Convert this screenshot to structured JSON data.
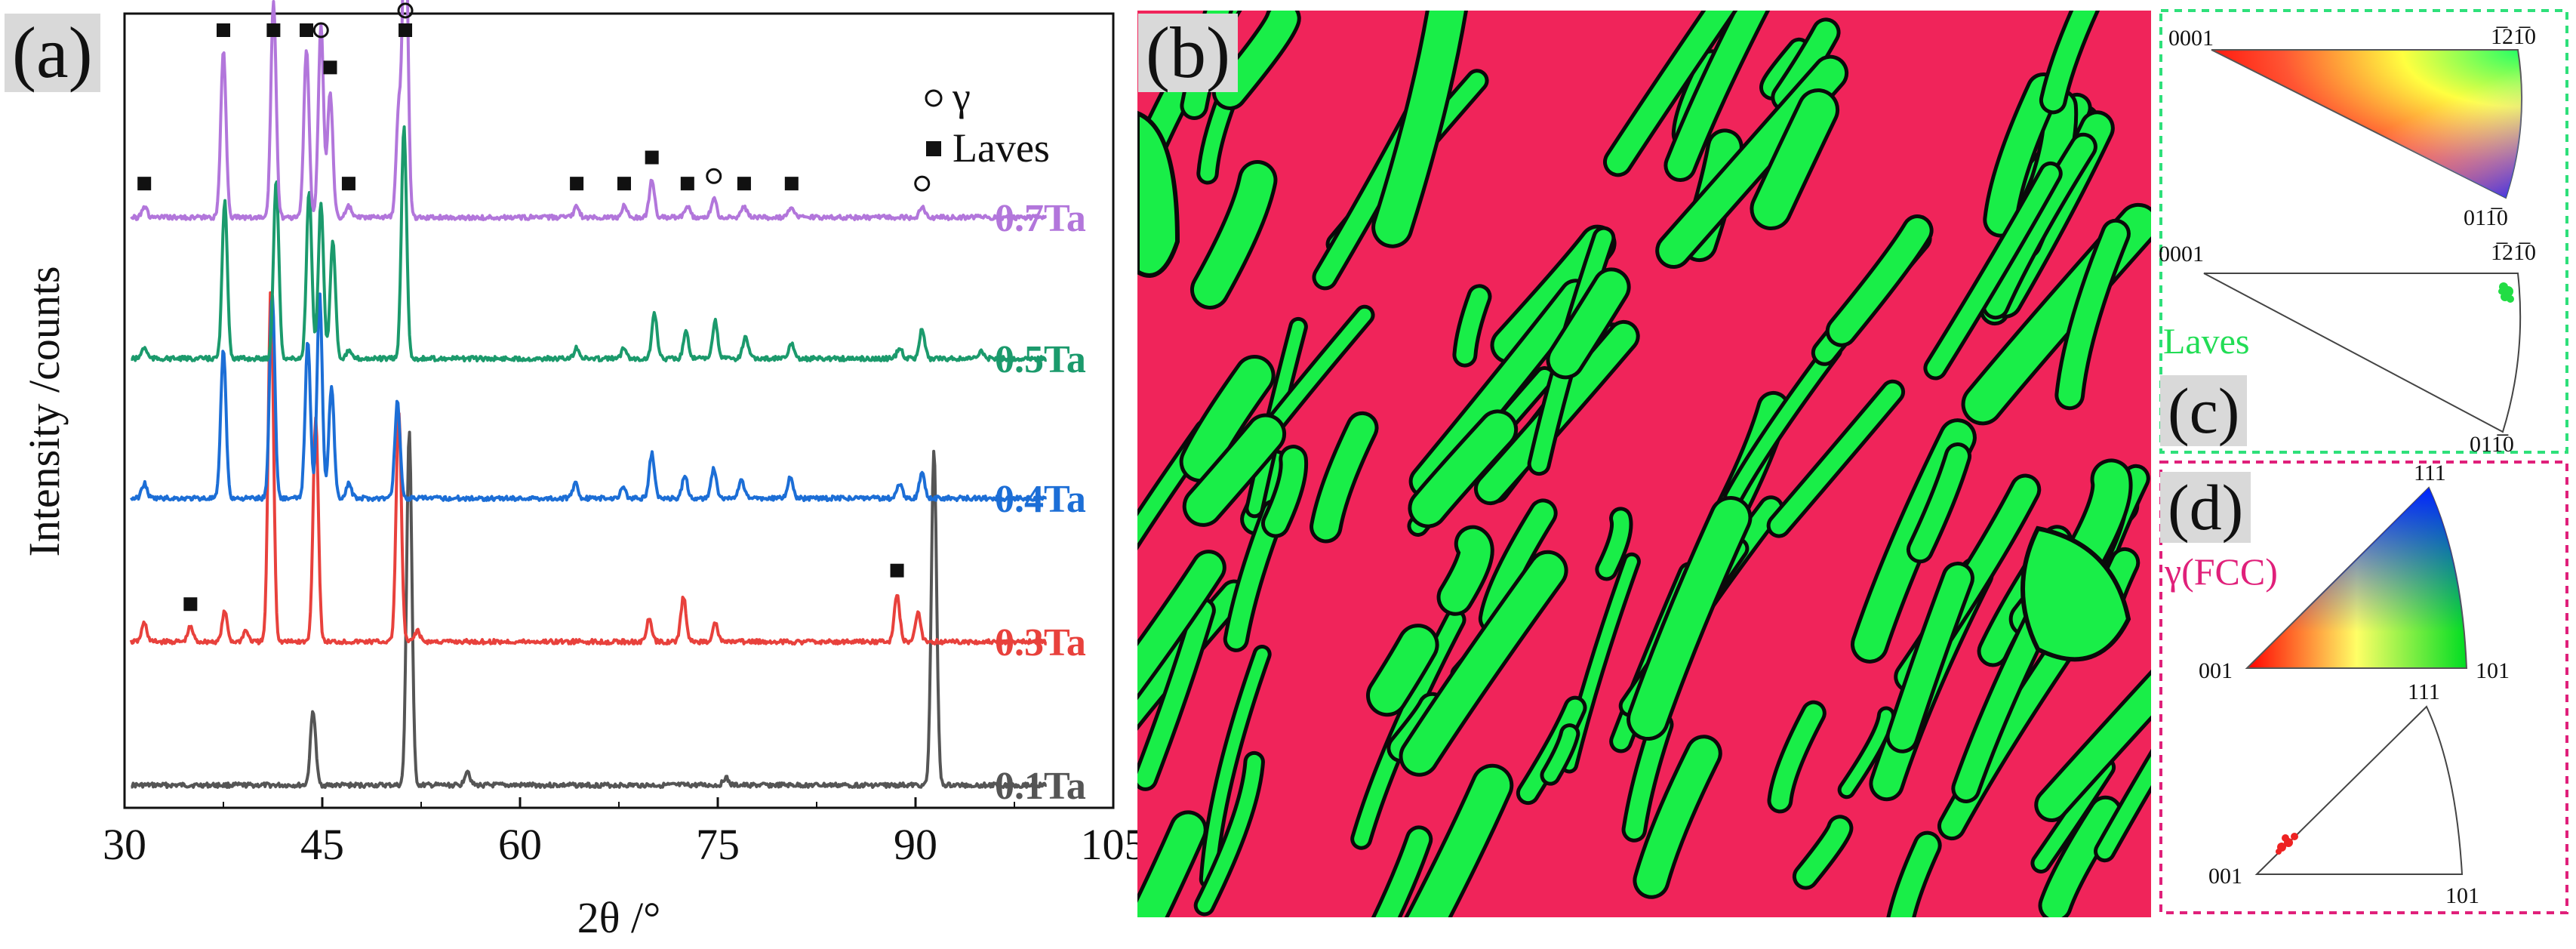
{
  "panels": {
    "a": "(a)",
    "b": "(b)",
    "c": "(c)",
    "d": "(d)"
  },
  "chart_data": {
    "type": "line",
    "title": "",
    "xlabel": "2θ /°",
    "ylabel": "Intensity /counts",
    "xlim": [
      30,
      105
    ],
    "xticks": [
      "30",
      "45",
      "60",
      "75",
      "90",
      "105"
    ],
    "legend": {
      "placement": "top-right",
      "entries": [
        {
          "symbol": "○",
          "label": "γ"
        },
        {
          "symbol": "■",
          "label": "Laves"
        }
      ]
    },
    "series": [
      {
        "name": "0.1Ta",
        "color": "#555555",
        "offset": 0,
        "peaks": [
          [
            44.3,
            0.2
          ],
          [
            51.6,
            0.95
          ],
          [
            56,
            0.04
          ],
          [
            75.6,
            0.02
          ],
          [
            91.4,
            0.9
          ]
        ]
      },
      {
        "name": "0.3Ta",
        "color": "#e8413c",
        "offset": 1,
        "peaks": [
          [
            31.5,
            0.05
          ],
          [
            35.0,
            0.04
          ],
          [
            37.6,
            0.08
          ],
          [
            39.2,
            0.03
          ],
          [
            41.1,
            0.95
          ],
          [
            44.5,
            0.6
          ],
          [
            50.8,
            0.62
          ],
          [
            52.2,
            0.03
          ],
          [
            69.8,
            0.06
          ],
          [
            72.4,
            0.12
          ],
          [
            74.8,
            0.05
          ],
          [
            88.6,
            0.13
          ],
          [
            90.2,
            0.08
          ]
        ]
      },
      {
        "name": "0.4Ta",
        "color": "#1c6ed6",
        "offset": 2,
        "peaks": [
          [
            31.5,
            0.04
          ],
          [
            37.5,
            0.4
          ],
          [
            41.2,
            0.55
          ],
          [
            43.9,
            0.42
          ],
          [
            44.8,
            0.55
          ],
          [
            45.7,
            0.3
          ],
          [
            47.0,
            0.04
          ],
          [
            50.7,
            0.26
          ],
          [
            64.2,
            0.04
          ],
          [
            67.8,
            0.03
          ],
          [
            70.0,
            0.12
          ],
          [
            72.5,
            0.06
          ],
          [
            74.7,
            0.08
          ],
          [
            76.8,
            0.05
          ],
          [
            80.5,
            0.06
          ],
          [
            88.8,
            0.04
          ],
          [
            90.5,
            0.07
          ]
        ]
      },
      {
        "name": "0.5Ta",
        "color": "#1b9a6c",
        "offset": 3,
        "peaks": [
          [
            31.5,
            0.03
          ],
          [
            37.6,
            0.42
          ],
          [
            41.5,
            0.48
          ],
          [
            44.0,
            0.45
          ],
          [
            44.9,
            0.42
          ],
          [
            45.8,
            0.32
          ],
          [
            47.0,
            0.02
          ],
          [
            51.2,
            0.62
          ],
          [
            64.3,
            0.03
          ],
          [
            67.9,
            0.03
          ],
          [
            70.2,
            0.12
          ],
          [
            72.6,
            0.07
          ],
          [
            74.8,
            0.1
          ],
          [
            77.1,
            0.06
          ],
          [
            80.6,
            0.04
          ],
          [
            88.8,
            0.03
          ],
          [
            90.5,
            0.08
          ],
          [
            95.0,
            0.02
          ]
        ]
      },
      {
        "name": "0.7Ta",
        "color": "#b276db",
        "offset": 4,
        "peaks": [
          [
            31.5,
            0.03
          ],
          [
            37.5,
            0.45
          ],
          [
            41.3,
            0.58
          ],
          [
            43.8,
            0.45
          ],
          [
            44.9,
            0.52
          ],
          [
            45.6,
            0.34
          ],
          [
            47.0,
            0.03
          ],
          [
            50.8,
            0.28
          ],
          [
            51.3,
            0.85
          ],
          [
            64.3,
            0.03
          ],
          [
            67.9,
            0.03
          ],
          [
            70.0,
            0.1
          ],
          [
            72.7,
            0.03
          ],
          [
            74.7,
            0.05
          ],
          [
            77.0,
            0.03
          ],
          [
            80.6,
            0.03
          ],
          [
            90.5,
            0.03
          ]
        ]
      }
    ],
    "markers": [
      {
        "series": "0.7Ta",
        "x": 31.5,
        "symbols": [
          "■"
        ]
      },
      {
        "series": "0.7Ta",
        "x": 37.5,
        "symbols": [
          "■"
        ]
      },
      {
        "series": "0.7Ta",
        "x": 41.3,
        "symbols": [
          "■"
        ]
      },
      {
        "series": "0.7Ta",
        "x": 43.8,
        "symbols": [
          "■"
        ]
      },
      {
        "series": "0.7Ta",
        "x": 44.9,
        "symbols": [
          "○"
        ]
      },
      {
        "series": "0.7Ta",
        "x": 45.6,
        "symbols": [
          "■"
        ]
      },
      {
        "series": "0.7Ta",
        "x": 47.0,
        "symbols": [
          "■"
        ]
      },
      {
        "series": "0.7Ta",
        "x": 51.3,
        "symbols": [
          "○",
          "■"
        ]
      },
      {
        "series": "0.7Ta",
        "x": 64.3,
        "symbols": [
          "■"
        ]
      },
      {
        "series": "0.7Ta",
        "x": 67.9,
        "symbols": [
          "■"
        ]
      },
      {
        "series": "0.7Ta",
        "x": 70.0,
        "symbols": [
          "■"
        ]
      },
      {
        "series": "0.7Ta",
        "x": 72.7,
        "symbols": [
          "■"
        ]
      },
      {
        "series": "0.7Ta",
        "x": 74.7,
        "symbols": [
          "○"
        ]
      },
      {
        "series": "0.7Ta",
        "x": 77.0,
        "symbols": [
          "■"
        ]
      },
      {
        "series": "0.7Ta",
        "x": 80.6,
        "symbols": [
          "■"
        ]
      },
      {
        "series": "0.7Ta",
        "x": 90.5,
        "symbols": [
          "○"
        ]
      },
      {
        "series": "0.3Ta",
        "x": 35.0,
        "symbols": [
          "■"
        ]
      },
      {
        "series": "0.3Ta",
        "x": 88.6,
        "symbols": [
          "■"
        ]
      }
    ]
  },
  "ebsd_map": {
    "colors": {
      "fcc": "#f0245a",
      "laves": "#19ee48",
      "boundary": "#0a0a0a"
    }
  },
  "ipf_laves": {
    "label": "Laves",
    "label_color": "#22dd55",
    "border_color": "#2ee07a",
    "corner_0001": "0001",
    "corner_1210": "1̅21̅0",
    "corner_0110": "011̅0"
  },
  "ipf_fcc": {
    "label": "γ(FCC)",
    "label_color": "#e0207a",
    "border_color": "#e0207a",
    "corner_001": "001",
    "corner_101": "101",
    "corner_111": "111"
  }
}
